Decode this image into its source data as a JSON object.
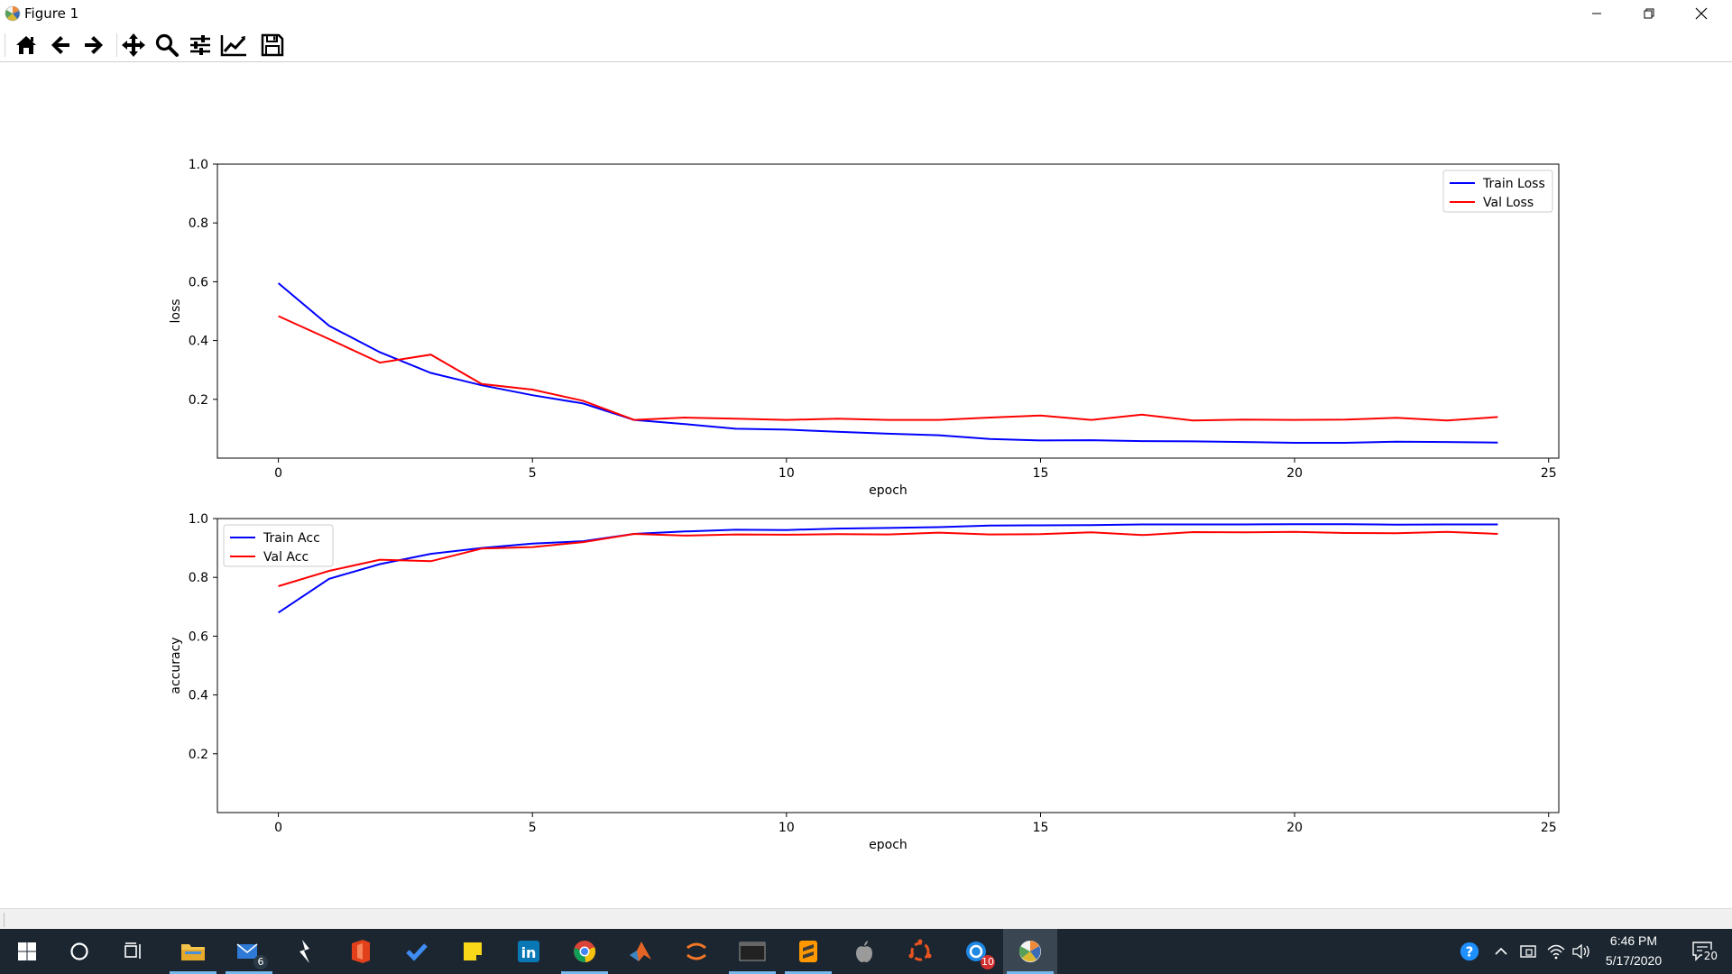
{
  "window": {
    "title": "Figure 1",
    "controls": [
      "minimize",
      "restore",
      "close"
    ]
  },
  "toolbar": {
    "buttons": [
      {
        "name": "home",
        "icon": "home-icon"
      },
      {
        "name": "back",
        "icon": "arrow-left-icon"
      },
      {
        "name": "forward",
        "icon": "arrow-right-icon"
      },
      {
        "name": "pan",
        "icon": "move-icon"
      },
      {
        "name": "zoom",
        "icon": "magnifier-icon"
      },
      {
        "name": "subplots",
        "icon": "sliders-icon"
      },
      {
        "name": "edit-axes",
        "icon": "chart-line-icon"
      },
      {
        "name": "save",
        "icon": "floppy-disk-icon"
      }
    ]
  },
  "chart_data": [
    {
      "type": "line",
      "xlabel": "epoch",
      "ylabel": "loss",
      "xlim": [
        -1.2,
        25.2
      ],
      "ylim": [
        0,
        1.0
      ],
      "xticks": [
        0,
        5,
        10,
        15,
        20,
        25
      ],
      "yticks": [
        0.2,
        0.4,
        0.6,
        0.8,
        1.0
      ],
      "xtick_labels": [
        "0",
        "5",
        "10",
        "15",
        "20",
        "25"
      ],
      "ytick_labels": [
        "0.2",
        "0.4",
        "0.6",
        "0.8",
        "1.0"
      ],
      "legend": "top-right",
      "grid": false,
      "x": [
        0,
        1,
        2,
        3,
        4,
        5,
        6,
        7,
        8,
        9,
        10,
        11,
        12,
        13,
        14,
        15,
        16,
        17,
        18,
        19,
        20,
        21,
        22,
        23,
        24
      ],
      "series": [
        {
          "name": "Train Loss",
          "color": "#0000ff",
          "values": [
            0.595,
            0.45,
            0.36,
            0.29,
            0.248,
            0.214,
            0.186,
            0.13,
            0.116,
            0.1,
            0.097,
            0.09,
            0.083,
            0.078,
            0.065,
            0.06,
            0.061,
            0.058,
            0.057,
            0.055,
            0.052,
            0.052,
            0.056,
            0.055,
            0.053
          ]
        },
        {
          "name": "Val Loss",
          "color": "#ff0000",
          "values": [
            0.483,
            0.405,
            0.325,
            0.352,
            0.252,
            0.233,
            0.195,
            0.13,
            0.138,
            0.134,
            0.13,
            0.134,
            0.13,
            0.13,
            0.138,
            0.145,
            0.13,
            0.148,
            0.128,
            0.131,
            0.13,
            0.131,
            0.137,
            0.128,
            0.14
          ]
        }
      ]
    },
    {
      "type": "line",
      "xlabel": "epoch",
      "ylabel": "accuracy",
      "xlim": [
        -1.2,
        25.2
      ],
      "ylim": [
        0,
        1.0
      ],
      "xticks": [
        0,
        5,
        10,
        15,
        20,
        25
      ],
      "yticks": [
        0.2,
        0.4,
        0.6,
        0.8,
        1.0
      ],
      "xtick_labels": [
        "0",
        "5",
        "10",
        "15",
        "20",
        "25"
      ],
      "ytick_labels": [
        "0.2",
        "0.4",
        "0.6",
        "0.8",
        "1.0"
      ],
      "legend": "top-left",
      "grid": false,
      "x": [
        0,
        1,
        2,
        3,
        4,
        5,
        6,
        7,
        8,
        9,
        10,
        11,
        12,
        13,
        14,
        15,
        16,
        17,
        18,
        19,
        20,
        21,
        22,
        23,
        24
      ],
      "series": [
        {
          "name": "Train Acc",
          "color": "#0000ff",
          "values": [
            0.68,
            0.795,
            0.845,
            0.88,
            0.9,
            0.915,
            0.923,
            0.948,
            0.956,
            0.962,
            0.961,
            0.966,
            0.968,
            0.971,
            0.976,
            0.977,
            0.978,
            0.98,
            0.98,
            0.98,
            0.981,
            0.981,
            0.979,
            0.98,
            0.98
          ]
        },
        {
          "name": "Val Acc",
          "color": "#ff0000",
          "values": [
            0.77,
            0.822,
            0.86,
            0.855,
            0.898,
            0.903,
            0.92,
            0.948,
            0.942,
            0.946,
            0.945,
            0.947,
            0.946,
            0.952,
            0.946,
            0.947,
            0.953,
            0.944,
            0.954,
            0.953,
            0.955,
            0.951,
            0.95,
            0.955,
            0.948
          ]
        }
      ]
    }
  ],
  "taskbar": {
    "apps": [
      {
        "name": "file-explorer",
        "icon": "folder-icon",
        "running": true,
        "badge": ""
      },
      {
        "name": "mail",
        "icon": "mail-icon",
        "running": true,
        "badge": "6"
      },
      {
        "name": "power-automate",
        "icon": "bolt-icon",
        "running": false,
        "badge": ""
      },
      {
        "name": "office",
        "icon": "office-icon",
        "running": false,
        "badge": ""
      },
      {
        "name": "todo",
        "icon": "checkmark-icon",
        "running": false,
        "badge": ""
      },
      {
        "name": "sticky-notes",
        "icon": "note-icon",
        "running": false,
        "badge": ""
      },
      {
        "name": "linkedin",
        "icon": "linkedin-icon",
        "running": false,
        "badge": ""
      },
      {
        "name": "chrome",
        "icon": "chrome-icon",
        "running": true,
        "badge": ""
      },
      {
        "name": "matlab",
        "icon": "matlab-icon",
        "running": false,
        "badge": ""
      },
      {
        "name": "jupyter",
        "icon": "jupyter-icon",
        "running": false,
        "badge": ""
      },
      {
        "name": "terminal",
        "icon": "terminal-icon",
        "running": true,
        "badge": ""
      },
      {
        "name": "sublime-text",
        "icon": "sublime-icon",
        "running": true,
        "badge": ""
      },
      {
        "name": "itunes",
        "icon": "apple-icon",
        "running": false,
        "badge": ""
      },
      {
        "name": "ubuntu",
        "icon": "ubuntu-icon",
        "running": false,
        "badge": ""
      },
      {
        "name": "chat",
        "icon": "chat-icon",
        "running": false,
        "badge": "10"
      },
      {
        "name": "matplotlib",
        "icon": "matplotlib-icon",
        "running": true,
        "badge": ""
      }
    ],
    "clock": {
      "time": "6:46 PM",
      "date": "5/17/2020"
    },
    "notifications_badge": "20"
  },
  "colors": {
    "taskbar_bg": "#1b2630",
    "train": "#0000ff",
    "val": "#ff0000",
    "taskbar_accent": "#76b9ed"
  }
}
